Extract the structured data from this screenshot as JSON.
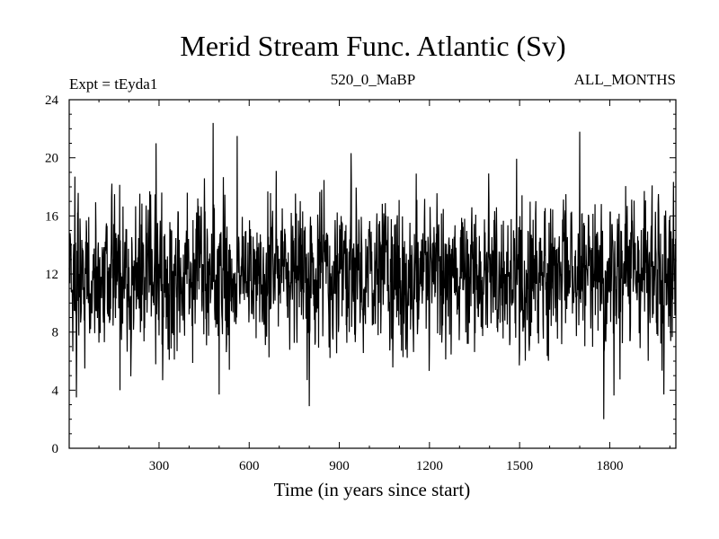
{
  "chart_data": {
    "type": "line",
    "title": "Merid Stream Func. Atlantic (Sv)",
    "subtitle_left": "Expt = tEyda1",
    "subtitle_center": "520_0_MaBP",
    "subtitle_right": "ALL_MONTHS",
    "xlabel": "Time (in years since start)",
    "ylabel": "",
    "xlim": [
      1,
      2020
    ],
    "ylim": [
      0,
      24
    ],
    "xticks": [
      300,
      600,
      900,
      1200,
      1500,
      1800
    ],
    "yticks": [
      0,
      4,
      8,
      12,
      16,
      20,
      24
    ],
    "grid": false,
    "series": [
      {
        "name": "Merid Stream Func. Atlantic",
        "color": "#000000",
        "n_points": 2020,
        "mean": 12,
        "min": 2.0,
        "max": 22.4,
        "notable_points": [
          {
            "x": 20,
            "y": 18.7
          },
          {
            "x": 25,
            "y": 3.5
          },
          {
            "x": 170,
            "y": 4.0
          },
          {
            "x": 290,
            "y": 21.0
          },
          {
            "x": 480,
            "y": 22.4
          },
          {
            "x": 500,
            "y": 3.7
          },
          {
            "x": 560,
            "y": 21.5
          },
          {
            "x": 800,
            "y": 2.9
          },
          {
            "x": 1700,
            "y": 21.8
          },
          {
            "x": 1780,
            "y": 2.0
          },
          {
            "x": 1980,
            "y": 3.7
          }
        ]
      }
    ]
  }
}
